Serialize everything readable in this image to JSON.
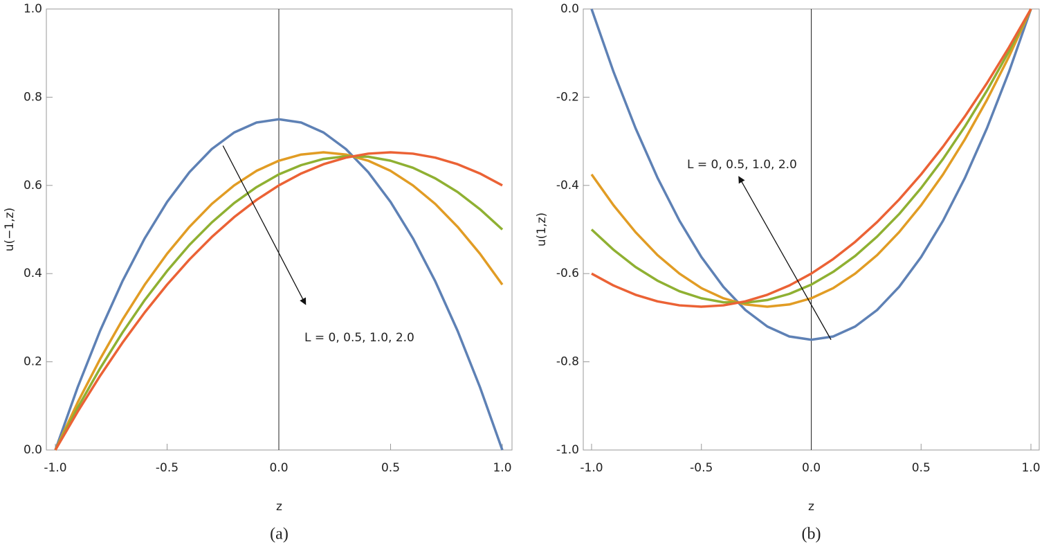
{
  "chart_data": [
    {
      "type": "line",
      "caption": "(a)",
      "xlabel": "z",
      "ylabel": "u(−1,z)",
      "annotation": "L = 0, 0.5, 1.0, 2.0",
      "x": [
        -1,
        -0.9,
        -0.8,
        -0.7,
        -0.6,
        -0.5,
        -0.4,
        -0.3,
        -0.2,
        -0.1,
        0,
        0.1,
        0.2,
        0.3,
        0.4,
        0.5,
        0.6,
        0.7,
        0.8,
        0.9,
        1
      ],
      "series": [
        {
          "color": "#5e81b5",
          "values": [
            0,
            0.1425,
            0.27,
            0.3825,
            0.48,
            0.5625,
            0.63,
            0.6825,
            0.72,
            0.7425,
            0.75,
            0.7425,
            0.72,
            0.6825,
            0.63,
            0.5625,
            0.48,
            0.3825,
            0.27,
            0.1425,
            0
          ]
        },
        {
          "color": "#e19c24",
          "values": [
            0,
            0.108,
            0.206,
            0.295,
            0.375,
            0.445,
            0.506,
            0.558,
            0.6,
            0.633,
            0.656,
            0.67,
            0.675,
            0.67,
            0.656,
            0.633,
            0.6,
            0.558,
            0.506,
            0.445,
            0.375
          ]
        },
        {
          "color": "#8fb032",
          "values": [
            0,
            0.096,
            0.185,
            0.266,
            0.34,
            0.406,
            0.465,
            0.516,
            0.56,
            0.596,
            0.625,
            0.646,
            0.66,
            0.666,
            0.665,
            0.656,
            0.64,
            0.616,
            0.585,
            0.546,
            0.5
          ]
        },
        {
          "color": "#eb6235",
          "values": [
            0,
            0.087,
            0.168,
            0.243,
            0.312,
            0.375,
            0.432,
            0.483,
            0.528,
            0.567,
            0.6,
            0.627,
            0.648,
            0.663,
            0.672,
            0.675,
            0.672,
            0.663,
            0.648,
            0.627,
            0.6
          ]
        }
      ],
      "xlim": [
        -1,
        1
      ],
      "ylim": [
        0,
        1
      ],
      "xticks": [
        {
          "value": -1,
          "label": "-1.0"
        },
        -0.5,
        {
          "value": 0,
          "label": "0.0"
        },
        0.5,
        {
          "value": 1,
          "label": "1.0"
        }
      ],
      "yticks": [
        {
          "value": 0,
          "label": "0.0"
        },
        0.2,
        0.4,
        0.6,
        0.8,
        {
          "value": 1,
          "label": "1.0"
        }
      ]
    },
    {
      "type": "line",
      "caption": "(b)",
      "xlabel": "z",
      "ylabel": "u(1,z)",
      "annotation": "L = 0, 0.5, 1.0, 2.0",
      "x": [
        -1,
        -0.9,
        -0.8,
        -0.7,
        -0.6,
        -0.5,
        -0.4,
        -0.3,
        -0.2,
        -0.1,
        0,
        0.1,
        0.2,
        0.3,
        0.4,
        0.5,
        0.6,
        0.7,
        0.8,
        0.9,
        1
      ],
      "series": [
        {
          "color": "#5e81b5",
          "values": [
            0,
            -0.1425,
            -0.27,
            -0.3825,
            -0.48,
            -0.5625,
            -0.63,
            -0.6825,
            -0.72,
            -0.7425,
            -0.75,
            -0.7425,
            -0.72,
            -0.6825,
            -0.63,
            -0.5625,
            -0.48,
            -0.3825,
            -0.27,
            -0.1425,
            0
          ]
        },
        {
          "color": "#e19c24",
          "values": [
            -0.375,
            -0.445,
            -0.506,
            -0.558,
            -0.6,
            -0.633,
            -0.656,
            -0.67,
            -0.675,
            -0.67,
            -0.656,
            -0.633,
            -0.6,
            -0.558,
            -0.506,
            -0.445,
            -0.375,
            -0.295,
            -0.206,
            -0.108,
            0
          ]
        },
        {
          "color": "#8fb032",
          "values": [
            -0.5,
            -0.546,
            -0.585,
            -0.616,
            -0.64,
            -0.656,
            -0.665,
            -0.666,
            -0.66,
            -0.646,
            -0.625,
            -0.596,
            -0.56,
            -0.516,
            -0.465,
            -0.406,
            -0.34,
            -0.266,
            -0.185,
            -0.096,
            0
          ]
        },
        {
          "color": "#eb6235",
          "values": [
            -0.6,
            -0.627,
            -0.648,
            -0.663,
            -0.672,
            -0.675,
            -0.672,
            -0.663,
            -0.648,
            -0.627,
            -0.6,
            -0.567,
            -0.528,
            -0.483,
            -0.432,
            -0.375,
            -0.312,
            -0.243,
            -0.168,
            -0.087,
            0
          ]
        }
      ],
      "xlim": [
        -1,
        1
      ],
      "ylim": [
        -1,
        0
      ],
      "xticks": [
        {
          "value": -1,
          "label": "-1.0"
        },
        -0.5,
        {
          "value": 0,
          "label": "0.0"
        },
        0.5,
        {
          "value": 1,
          "label": "1.0"
        }
      ],
      "yticks": [
        {
          "value": -1,
          "label": "-1.0"
        },
        -0.8,
        -0.6,
        -0.4,
        -0.2,
        {
          "value": 0,
          "label": "0.0"
        }
      ]
    }
  ]
}
